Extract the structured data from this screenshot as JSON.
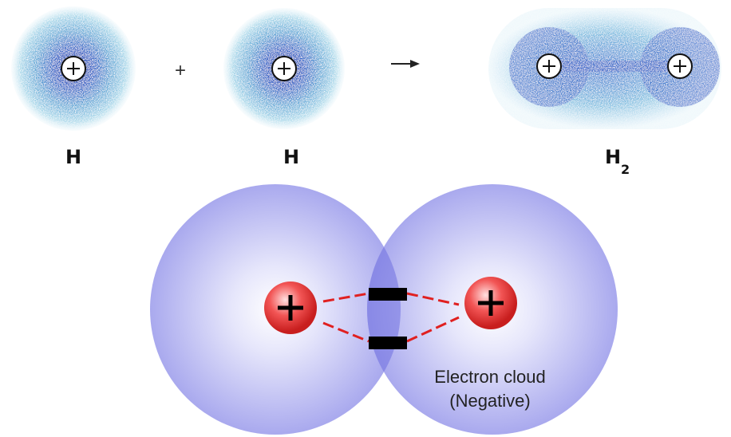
{
  "reactants": {
    "labels": [
      "H",
      "H"
    ],
    "operator": "+"
  },
  "product": {
    "label": "H",
    "subscript": "2"
  },
  "bond_diagram": {
    "annotation": [
      "Electron cloud",
      "(Negative)"
    ]
  }
}
